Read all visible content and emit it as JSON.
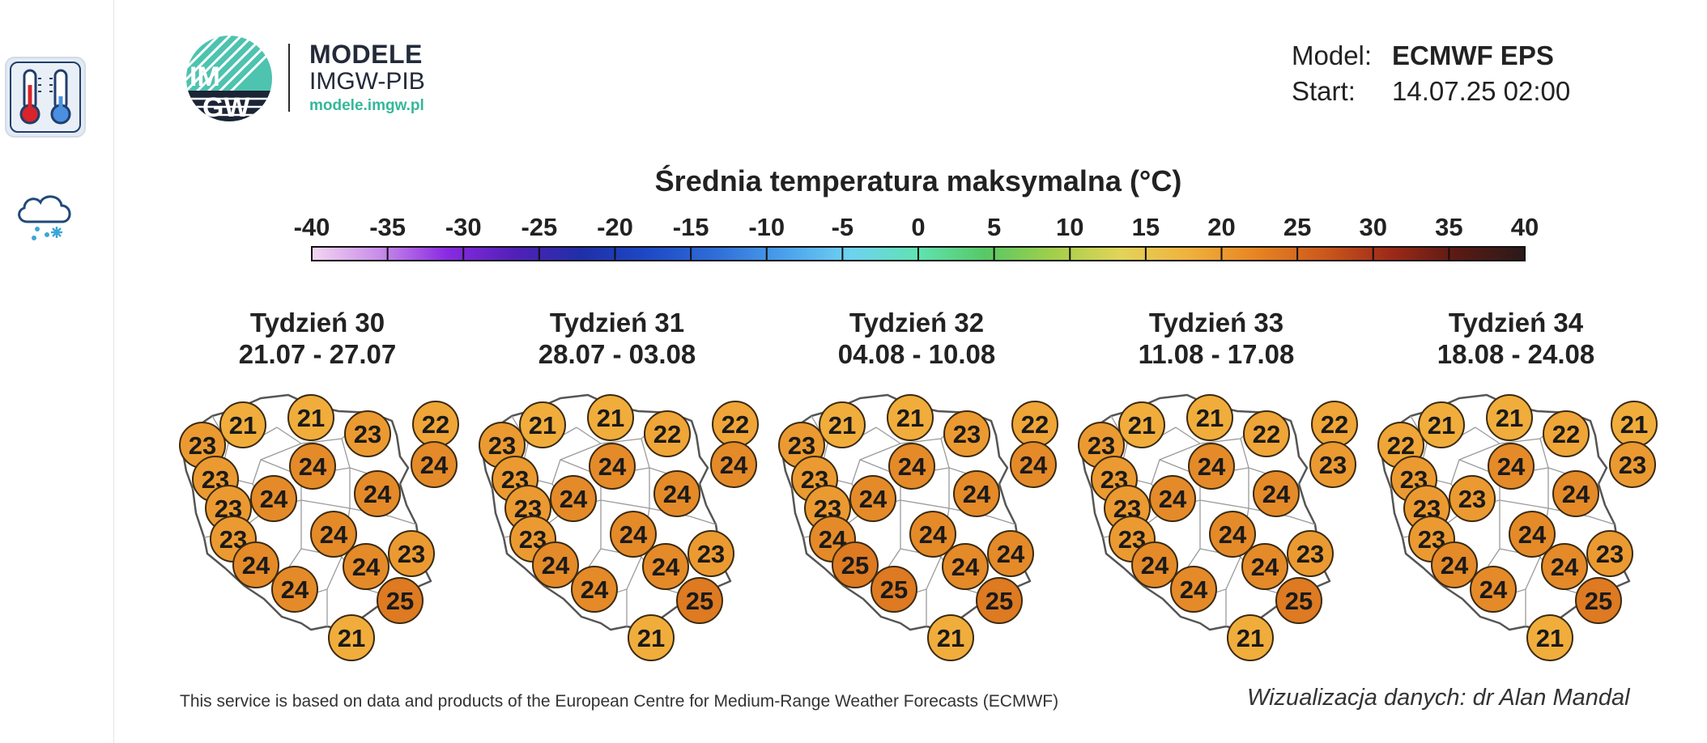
{
  "sidebar": {
    "items": [
      {
        "name": "temperature",
        "icon": "thermometers-icon",
        "active": true
      },
      {
        "name": "precipitation",
        "icon": "cloud-snow-icon",
        "active": false
      }
    ]
  },
  "logo": {
    "badge_top": "IM",
    "badge_bottom": "GW",
    "title": "MODELE",
    "org": "IMGW-PIB",
    "url": "modele.imgw.pl"
  },
  "model_info": {
    "model_label": "Model:",
    "model_value": "ECMWF EPS",
    "start_label": "Start:",
    "start_value": "14.07.25 02:00"
  },
  "chart_data": {
    "type": "map",
    "title": "Średnia temperatura maksymalna (°C)",
    "colorbar": {
      "ticks": [
        -40,
        -35,
        -30,
        -25,
        -20,
        -15,
        -10,
        -5,
        0,
        5,
        10,
        15,
        20,
        25,
        30,
        35,
        40
      ],
      "range": [
        -40,
        40
      ],
      "colors": [
        "#f3d6f1",
        "#c98de8",
        "#8a2be2",
        "#5220b8",
        "#1f2fa8",
        "#1e49c6",
        "#2f6ed8",
        "#4aa0ec",
        "#6fd2f0",
        "#5fe3b0",
        "#58c866",
        "#a2cf4a",
        "#e2d45a",
        "#f0b23e",
        "#e78523",
        "#cc5a1c",
        "#9e2a18",
        "#5a1a14",
        "#2a1a1a"
      ]
    },
    "weeks": [
      {
        "label": "Tydzień 30",
        "range": "21.07 - 27.07",
        "values": [
          23,
          21,
          21,
          23,
          22,
          23,
          24,
          24,
          23,
          24,
          24,
          23,
          24,
          23,
          24,
          24,
          24,
          25,
          21
        ]
      },
      {
        "label": "Tydzień 31",
        "range": "28.07 - 03.08",
        "values": [
          23,
          21,
          21,
          22,
          22,
          23,
          24,
          24,
          23,
          24,
          24,
          23,
          24,
          23,
          24,
          24,
          24,
          25,
          21
        ]
      },
      {
        "label": "Tydzień 32",
        "range": "04.08 - 10.08",
        "values": [
          23,
          21,
          21,
          23,
          22,
          23,
          24,
          24,
          23,
          24,
          24,
          24,
          24,
          24,
          25,
          24,
          25,
          25,
          21
        ]
      },
      {
        "label": "Tydzień 33",
        "range": "11.08 - 17.08",
        "values": [
          23,
          21,
          21,
          22,
          22,
          23,
          24,
          23,
          23,
          24,
          24,
          23,
          24,
          23,
          24,
          24,
          24,
          25,
          21
        ]
      },
      {
        "label": "Tydzień 34",
        "range": "18.08 - 24.08",
        "values": [
          22,
          21,
          21,
          22,
          21,
          23,
          24,
          23,
          23,
          23,
          24,
          23,
          24,
          23,
          24,
          24,
          24,
          25,
          21
        ]
      }
    ]
  },
  "footer": {
    "note": "This service is based on data and products of the European Centre for Medium-Range Weather Forecasts (ECMWF)",
    "credit": "Wizualizacja danych: dr Alan Mandal"
  }
}
